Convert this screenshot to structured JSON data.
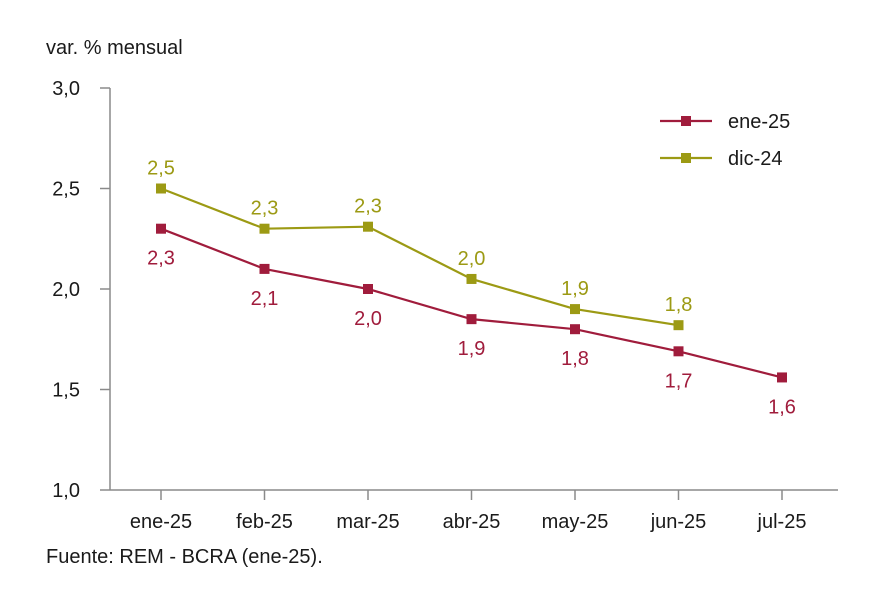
{
  "chart_data": {
    "type": "line",
    "ylabel": "var. % mensual",
    "xlabel": "",
    "categories": [
      "ene-25",
      "feb-25",
      "mar-25",
      "abr-25",
      "may-25",
      "jun-25",
      "jul-25"
    ],
    "ylim": [
      1.0,
      3.0
    ],
    "yticks": [
      1.0,
      1.5,
      2.0,
      2.5,
      3.0
    ],
    "ytick_labels": [
      "1,0",
      "1,5",
      "2,0",
      "2,5",
      "3,0"
    ],
    "grid": false,
    "legend_position": "top-right",
    "series": [
      {
        "name": "ene-25",
        "color": "#a01c3c",
        "values": [
          2.3,
          2.1,
          2.0,
          1.85,
          1.8,
          1.69,
          1.56
        ],
        "labels": [
          "2,3",
          "2,1",
          "2,0",
          "1,9",
          "1,8",
          "1,7",
          "1,6"
        ],
        "label_position": "below"
      },
      {
        "name": "dic-24",
        "color": "#9c9a14",
        "values": [
          2.5,
          2.3,
          2.31,
          2.05,
          1.9,
          1.82,
          null
        ],
        "labels": [
          "2,5",
          "2,3",
          "2,3",
          "2,0",
          "1,9",
          "1,8",
          null
        ],
        "label_position": "above"
      }
    ],
    "axis_color": "#8a8a8a",
    "text_color": "#1a1a1a"
  },
  "footer": {
    "source": "Fuente: REM - BCRA (ene-25)."
  }
}
